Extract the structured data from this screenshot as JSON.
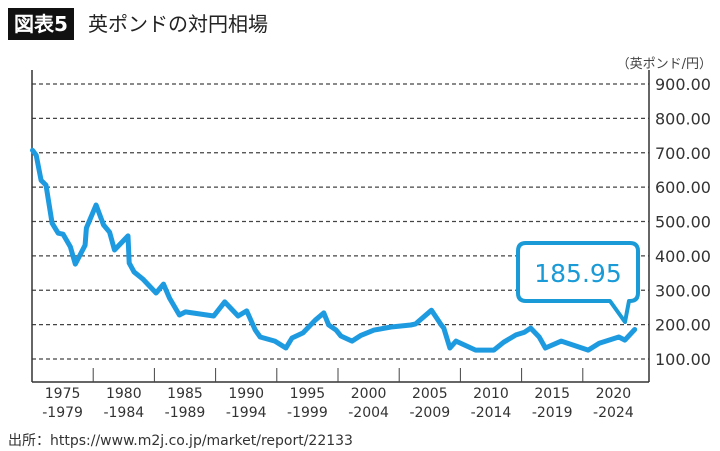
{
  "header": {
    "badge": "図表5",
    "title": "英ポンドの対円相場"
  },
  "source": "出所：https://www.m2j.co.jp/market/report/22133",
  "chart_data": {
    "type": "line",
    "title": "英ポンドの対円相場",
    "unit_label": "（英ポンド/円）",
    "ylim": [
      100,
      900
    ],
    "xlim": [
      1975,
      2025
    ],
    "y_ticks": [
      "100.00",
      "200.00",
      "300.00",
      "400.00",
      "500.00",
      "600.00",
      "700.00",
      "800.00",
      "900.00"
    ],
    "x_tick_labels": [
      [
        "1975",
        "-1979"
      ],
      [
        "1980",
        "-1984"
      ],
      [
        "1985",
        "-1989"
      ],
      [
        "1990",
        "-1994"
      ],
      [
        "1995",
        "-1999"
      ],
      [
        "2000",
        "-2004"
      ],
      [
        "2005",
        "-2009"
      ],
      [
        "2010",
        "-2014"
      ],
      [
        "2015",
        "-2019"
      ],
      [
        "2020",
        "-2024"
      ]
    ],
    "grid": true,
    "line_color": "#1e9be0",
    "callout": {
      "value": "185.95"
    },
    "series": [
      {
        "x": [
          1975.0,
          1975.3,
          1975.7,
          1976.1,
          1976.6,
          1977.1,
          1977.5,
          1978.1,
          1978.5,
          1979.3,
          1979.4,
          1980.2,
          1980.8,
          1981.3,
          1981.7,
          1982.8,
          1982.9,
          1983.3,
          1984.0,
          1985.1,
          1985.7,
          1986.2,
          1987.0,
          1987.5,
          1989.8,
          1990.7,
          1991.8,
          1992.5,
          1993.2,
          1993.6,
          1994.8,
          1995.7,
          1996.2,
          1997.1,
          1998.1,
          1998.8,
          1999.2,
          1999.8,
          2000.2,
          2001.1,
          2001.8,
          2002.9,
          2004.3,
          2005.9,
          2006.3,
          2007.6,
          2008.4,
          2008.6,
          2009.1,
          2009.6,
          2011.2,
          2012.7,
          2013.5,
          2014.5,
          2015.2,
          2015.7,
          2016.4,
          2016.9,
          2018.2,
          2020.4,
          2021.3,
          2022.9,
          2023.4,
          2024.2
        ],
        "y": [
          707,
          693,
          620,
          606,
          495,
          466,
          463,
          426,
          376,
          431,
          481,
          548,
          490,
          469,
          417,
          458,
          379,
          353,
          333,
          292,
          318,
          277,
          228,
          237,
          225,
          266,
          225,
          240,
          184,
          164,
          152,
          132,
          161,
          176,
          213,
          234,
          199,
          184,
          167,
          152,
          168,
          184,
          193,
          199,
          202,
          242,
          199,
          190,
          132,
          152,
          126,
          126,
          149,
          170,
          178,
          190,
          164,
          132,
          152,
          126,
          146,
          164,
          155,
          185.95
        ]
      }
    ]
  }
}
